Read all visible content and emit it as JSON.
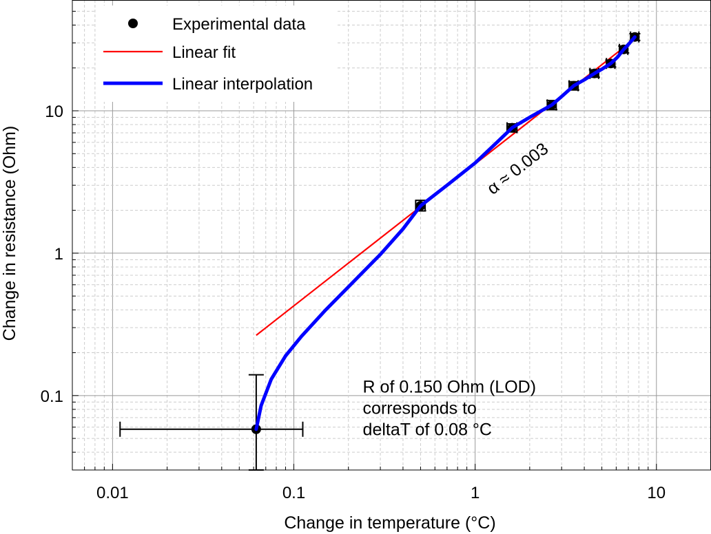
{
  "chart_data": {
    "type": "scatter",
    "xscale": "log",
    "yscale": "log",
    "xlim": [
      0.006,
      20
    ],
    "ylim": [
      0.03,
      60
    ],
    "xlabel": "Change in temperature (°C)",
    "ylabel": "Change in resistance (Ohm)",
    "xticks": [
      {
        "value": 0.01,
        "label": "0.01"
      },
      {
        "value": 0.1,
        "label": "0.1"
      },
      {
        "value": 1,
        "label": "1"
      },
      {
        "value": 10,
        "label": "10"
      }
    ],
    "yticks": [
      {
        "value": 0.1,
        "label": "0.1"
      },
      {
        "value": 1,
        "label": "1"
      },
      {
        "value": 10,
        "label": "10"
      }
    ],
    "grid": true,
    "legend_position": "top-left",
    "legend": [
      {
        "label": "Experimental data",
        "kind": "marker",
        "color": "#000000"
      },
      {
        "label": "Linear fit",
        "kind": "line",
        "color": "#ff0000"
      },
      {
        "label": "Linear interpolation",
        "kind": "thick-line",
        "color": "#0000ff"
      }
    ],
    "series": [
      {
        "name": "Experimental data",
        "color": "#000000",
        "points": [
          {
            "x": 0.062,
            "y": 0.058,
            "x_err": [
              0.011,
              0.112
            ],
            "y_err": [
              0.03,
              0.14
            ]
          },
          {
            "x": 0.5,
            "y": 2.15,
            "x_err": [
              0.47,
              0.53
            ],
            "y_err": [
              1.98,
              2.35
            ]
          },
          {
            "x": 1.6,
            "y": 7.6,
            "x_err": [
              1.5,
              1.7
            ],
            "y_err": [
              7.1,
              8.1
            ]
          },
          {
            "x": 2.65,
            "y": 11.0,
            "x_err": [
              2.5,
              2.8
            ],
            "y_err": [
              10.2,
              11.8
            ]
          },
          {
            "x": 3.5,
            "y": 15.0,
            "x_err": [
              3.3,
              3.7
            ],
            "y_err": [
              14.0,
              16.0
            ]
          },
          {
            "x": 4.55,
            "y": 18.3,
            "x_err": [
              4.3,
              4.8
            ],
            "y_err": [
              17.2,
              19.4
            ]
          },
          {
            "x": 5.6,
            "y": 21.5,
            "x_err": [
              5.3,
              5.9
            ],
            "y_err": [
              20.3,
              22.7
            ]
          },
          {
            "x": 6.6,
            "y": 27.0,
            "x_err": [
              6.25,
              6.95
            ],
            "y_err": [
              25.5,
              28.5
            ]
          },
          {
            "x": 7.6,
            "y": 33.0,
            "x_err": [
              7.2,
              8.0
            ],
            "y_err": [
              31.2,
              34.8
            ]
          }
        ]
      },
      {
        "name": "Linear fit",
        "color": "#ff0000",
        "x": [
          0.062,
          7.6
        ],
        "y": [
          0.265,
          32.0
        ]
      },
      {
        "name": "Linear interpolation",
        "color": "#0000ff",
        "x": [
          0.062,
          0.066,
          0.075,
          0.09,
          0.11,
          0.15,
          0.2,
          0.3,
          0.4,
          0.5,
          0.7,
          1.0,
          1.3,
          1.6,
          2.0,
          2.65,
          3.0,
          3.5,
          4.0,
          4.55,
          5.0,
          5.6,
          6.1,
          6.6,
          7.1,
          7.6
        ],
        "y": [
          0.058,
          0.085,
          0.13,
          0.19,
          0.26,
          0.4,
          0.58,
          0.98,
          1.48,
          2.15,
          3.0,
          4.3,
          5.9,
          7.6,
          9.0,
          11.0,
          12.6,
          15.0,
          16.5,
          18.3,
          19.6,
          21.5,
          23.8,
          27.0,
          29.8,
          33.0
        ]
      }
    ],
    "annotations": [
      {
        "text": "α ≈ 0.003",
        "anchor": {
          "x": 1.25,
          "y": 2.55
        },
        "rotation": -38
      },
      {
        "lines": [
          "R of 0.150 Ohm (LOD)",
          "corresponds to",
          "deltaT of 0.08 °C"
        ],
        "anchor": {
          "x": 0.24,
          "y": 0.105
        }
      }
    ]
  }
}
